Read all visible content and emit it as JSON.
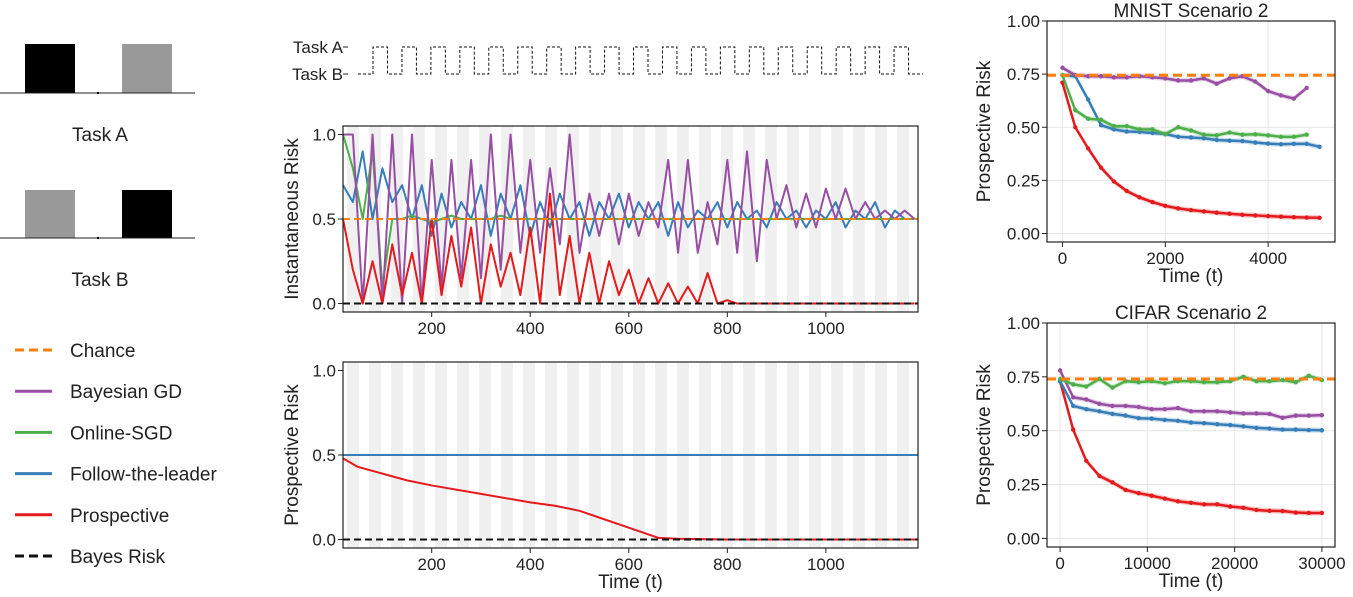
{
  "tasks_panel": {
    "task_a_label": "Task A",
    "task_b_label": "Task B"
  },
  "legend": [
    {
      "label": "Chance",
      "color": "#ff7f0e",
      "dashed": true
    },
    {
      "label": "Bayesian GD",
      "color": "#984ea3",
      "dashed": false
    },
    {
      "label": "Online-SGD",
      "color": "#4daf4a",
      "dashed": false
    },
    {
      "label": "Follow-the-leader",
      "color": "#377eb8",
      "dashed": false
    },
    {
      "label": "Prospective",
      "color": "#e41a1c",
      "dashed": false
    },
    {
      "label": "Bayes Risk",
      "color": "#111111",
      "dashed": true
    }
  ],
  "chart_data": [
    {
      "id": "task-schedule",
      "type": "line",
      "ytick_labels": [
        "Task A",
        "Task B"
      ],
      "cycles": 19
    },
    {
      "id": "instantaneous",
      "type": "line",
      "ylabel": "Instantaneous Risk",
      "xlabel": "",
      "xlim": [
        20,
        1187
      ],
      "ylim": [
        -0.05,
        1.05
      ],
      "xticks": [
        "200",
        "400",
        "600",
        "800",
        "1000"
      ],
      "xtick_values": [
        200,
        400,
        600,
        800,
        1000
      ],
      "yticks": [
        "0.0",
        "0.5",
        "1.0"
      ],
      "ytick_values": [
        0,
        0.5,
        1
      ],
      "x_start": 20,
      "x_step": 20,
      "chance": 0.5,
      "bayes": 0.0,
      "series": [
        {
          "name": "Follow-the-leader",
          "color": "#377eb8",
          "values": [
            0.7,
            0.6,
            0.9,
            0.5,
            0.8,
            0.6,
            0.7,
            0.5,
            0.7,
            0.4,
            0.65,
            0.45,
            0.6,
            0.5,
            0.7,
            0.4,
            0.65,
            0.5,
            0.7,
            0.4,
            0.6,
            0.45,
            0.65,
            0.5,
            0.6,
            0.4,
            0.6,
            0.5,
            0.65,
            0.45,
            0.6,
            0.5,
            0.6,
            0.4,
            0.6,
            0.45,
            0.55,
            0.5,
            0.6,
            0.45,
            0.6,
            0.5,
            0.55,
            0.45,
            0.6,
            0.5,
            0.55,
            0.45,
            0.55,
            0.5,
            0.6,
            0.45,
            0.55,
            0.5,
            0.6,
            0.45,
            0.55,
            0.5,
            0.5
          ]
        },
        {
          "name": "Online-SGD",
          "color": "#4daf4a",
          "values": [
            1,
            0.8,
            0.5,
            0.9,
            0.1,
            0.5,
            0.5,
            0.52,
            0.5,
            0.48,
            0.5,
            0.52,
            0.5,
            0.5,
            0.5,
            0.5,
            0.52,
            0.5,
            0.5,
            0.5,
            0.5,
            0.5,
            0.5,
            0.5,
            0.5,
            0.5,
            0.5,
            0.5,
            0.5,
            0.5,
            0.5,
            0.5,
            0.5,
            0.5,
            0.5,
            0.5,
            0.5,
            0.5,
            0.5,
            0.5,
            0.5,
            0.5,
            0.5,
            0.5,
            0.5,
            0.5,
            0.5,
            0.5,
            0.5,
            0.5,
            0.5,
            0.5,
            0.5,
            0.5,
            0.5,
            0.5,
            0.5,
            0.5,
            0.5
          ]
        },
        {
          "name": "Bayesian GD",
          "color": "#984ea3",
          "values": [
            1,
            1,
            0,
            1,
            0,
            1,
            0,
            1,
            0,
            0.85,
            0.1,
            0.85,
            0.15,
            0.85,
            0.15,
            1,
            0.2,
            1,
            0.3,
            0.85,
            0.3,
            0.8,
            0.35,
            1,
            0.3,
            0.65,
            0.4,
            0.65,
            0.35,
            0.65,
            0.4,
            0.6,
            0.45,
            0.85,
            0.3,
            0.85,
            0.3,
            0.6,
            0.35,
            0.85,
            0.3,
            0.9,
            0.25,
            0.85,
            0.5,
            0.7,
            0.45,
            0.65,
            0.45,
            0.68,
            0.5,
            0.68,
            0.5,
            0.6,
            0.5,
            0.55,
            0.5,
            0.55,
            0.5
          ]
        },
        {
          "name": "Prospective",
          "color": "#e41a1c",
          "values": [
            0.5,
            0.2,
            0,
            0.25,
            0,
            0.35,
            0.05,
            0.3,
            0,
            0.5,
            0.05,
            0.4,
            0.1,
            0.45,
            0,
            0.35,
            0.1,
            0.3,
            0.05,
            0.45,
            0,
            0.65,
            0.05,
            0.4,
            0,
            0.3,
            0,
            0.25,
            0.05,
            0.2,
            0,
            0.15,
            0,
            0.12,
            0,
            0.1,
            0,
            0.18,
            0,
            0.02,
            0,
            0,
            0,
            0,
            0,
            0,
            0,
            0,
            0,
            0,
            0,
            0,
            0,
            0,
            0,
            0,
            0,
            0,
            0
          ]
        }
      ]
    },
    {
      "id": "prospective-synthetic",
      "type": "line",
      "ylabel": "Prospective Risk",
      "xlabel": "Time (t)",
      "xlim": [
        20,
        1187
      ],
      "ylim": [
        -0.05,
        1.05
      ],
      "xticks": [
        "200",
        "400",
        "600",
        "800",
        "1000"
      ],
      "xtick_values": [
        200,
        400,
        600,
        800,
        1000
      ],
      "yticks": [
        "0.0",
        "0.5",
        "1.0"
      ],
      "ytick_values": [
        0,
        0.5,
        1
      ],
      "chance": 0.5,
      "bayes": 0.0,
      "x": [
        20,
        50,
        100,
        150,
        200,
        300,
        400,
        450,
        500,
        550,
        580,
        620,
        660,
        700,
        800,
        1000,
        1187
      ],
      "series": [
        {
          "name": "Follow-the-leader",
          "color": "#377eb8",
          "values": [
            0.5,
            0.5,
            0.5,
            0.5,
            0.5,
            0.5,
            0.5,
            0.5,
            0.5,
            0.5,
            0.5,
            0.5,
            0.5,
            0.5,
            0.5,
            0.5,
            0.5
          ]
        },
        {
          "name": "Prospective",
          "color": "#e41a1c",
          "values": [
            0.48,
            0.43,
            0.39,
            0.35,
            0.32,
            0.27,
            0.22,
            0.2,
            0.17,
            0.12,
            0.09,
            0.05,
            0.01,
            0.005,
            0,
            0,
            0
          ]
        }
      ]
    },
    {
      "id": "mnist",
      "type": "line",
      "title": "MNIST Scenario 2",
      "xlabel": "Time (t)",
      "ylabel": "Prospective Risk",
      "xlim": [
        -300,
        5300
      ],
      "ylim": [
        -0.04,
        1.0
      ],
      "xticks": [
        "0",
        "2000",
        "4000"
      ],
      "xtick_values": [
        0,
        2000,
        4000
      ],
      "yticks": [
        "0.00",
        "0.25",
        "0.50",
        "0.75",
        "1.00"
      ],
      "ytick_values": [
        0,
        0.25,
        0.5,
        0.75,
        1
      ],
      "chance": 0.745,
      "x_step": 250,
      "series": [
        {
          "name": "Prospective",
          "color": "#e41a1c",
          "values": [
            0.71,
            0.5,
            0.4,
            0.31,
            0.245,
            0.2,
            0.17,
            0.148,
            0.13,
            0.118,
            0.11,
            0.104,
            0.098,
            0.093,
            0.088,
            0.085,
            0.082,
            0.079,
            0.077,
            0.075,
            0.074
          ]
        },
        {
          "name": "Follow-the-leader",
          "color": "#377eb8",
          "values": [
            0.745,
            0.74,
            0.63,
            0.51,
            0.49,
            0.48,
            0.478,
            0.473,
            0.468,
            0.455,
            0.452,
            0.448,
            0.44,
            0.437,
            0.435,
            0.428,
            0.423,
            0.42,
            0.422,
            0.422,
            0.408
          ]
        },
        {
          "name": "Online-SGD",
          "color": "#4daf4a",
          "values": [
            0.745,
            0.58,
            0.54,
            0.535,
            0.505,
            0.505,
            0.49,
            0.49,
            0.468,
            0.5,
            0.485,
            0.465,
            0.462,
            0.475,
            0.465,
            0.467,
            0.462,
            0.455,
            0.455,
            0.465
          ]
        },
        {
          "name": "Bayesian GD",
          "color": "#984ea3",
          "values": [
            0.78,
            0.745,
            0.74,
            0.74,
            0.735,
            0.735,
            0.74,
            0.735,
            0.73,
            0.72,
            0.72,
            0.73,
            0.705,
            0.73,
            0.74,
            0.715,
            0.67,
            0.65,
            0.635,
            0.685
          ]
        }
      ]
    },
    {
      "id": "cifar",
      "type": "line",
      "title": "CIFAR Scenario 2",
      "xlabel": "Time (t)",
      "ylabel": "Prospective Risk",
      "xlim": [
        -1500,
        31500
      ],
      "ylim": [
        -0.04,
        1.0
      ],
      "xticks": [
        "0",
        "10000",
        "20000",
        "30000"
      ],
      "xtick_values": [
        0,
        10000,
        20000,
        30000
      ],
      "yticks": [
        "0.00",
        "0.25",
        "0.50",
        "0.75",
        "1.00"
      ],
      "ytick_values": [
        0,
        0.25,
        0.5,
        0.75,
        1
      ],
      "chance": 0.74,
      "x_step": 1500,
      "series": [
        {
          "name": "Prospective",
          "color": "#e41a1c",
          "values": [
            0.73,
            0.505,
            0.36,
            0.29,
            0.26,
            0.225,
            0.21,
            0.198,
            0.185,
            0.172,
            0.165,
            0.158,
            0.158,
            0.148,
            0.142,
            0.132,
            0.128,
            0.127,
            0.12,
            0.118,
            0.118
          ]
        },
        {
          "name": "Follow-the-leader",
          "color": "#377eb8",
          "values": [
            0.73,
            0.615,
            0.6,
            0.59,
            0.578,
            0.57,
            0.558,
            0.556,
            0.55,
            0.546,
            0.538,
            0.535,
            0.53,
            0.526,
            0.52,
            0.513,
            0.51,
            0.505,
            0.505,
            0.503,
            0.502
          ]
        },
        {
          "name": "Bayesian GD",
          "color": "#984ea3",
          "values": [
            0.78,
            0.655,
            0.645,
            0.625,
            0.615,
            0.615,
            0.61,
            0.6,
            0.6,
            0.605,
            0.59,
            0.59,
            0.59,
            0.585,
            0.58,
            0.58,
            0.578,
            0.56,
            0.57,
            0.57,
            0.572
          ]
        },
        {
          "name": "Online-SGD",
          "color": "#4daf4a",
          "values": [
            0.74,
            0.715,
            0.705,
            0.74,
            0.7,
            0.73,
            0.725,
            0.73,
            0.72,
            0.73,
            0.73,
            0.725,
            0.725,
            0.73,
            0.75,
            0.73,
            0.73,
            0.735,
            0.725,
            0.755,
            0.735
          ]
        }
      ]
    }
  ]
}
